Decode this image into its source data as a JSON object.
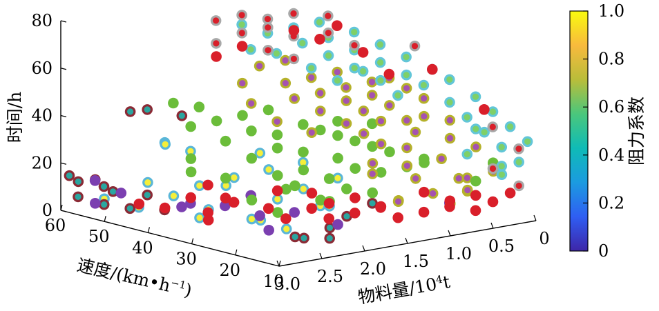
{
  "chart_data": {
    "type": "scatter",
    "projection": "3d",
    "z_label": "时间/h",
    "y_label_main": "速度/(km•h",
    "y_label_sup": "−1",
    "y_label_close": ")",
    "x_label_main": "物料量/10",
    "x_label_sup": "4",
    "x_label_unit": "t",
    "colorbar_label": "阻力系数",
    "z_ticks": [
      "0",
      "20",
      "40",
      "60",
      "80"
    ],
    "y_ticks": [
      "10",
      "20",
      "30",
      "40",
      "50",
      "60"
    ],
    "x_ticks": [
      "0",
      "0.5",
      "1.0",
      "1.5",
      "2.0",
      "2.5",
      "3.0"
    ],
    "colorbar_ticks": [
      "0",
      "0.2",
      "0.4",
      "0.6",
      "0.8",
      "1.0"
    ],
    "xlim": [
      0,
      3.0
    ],
    "ylim": [
      10,
      60
    ],
    "zlim": [
      0,
      80
    ],
    "clim": [
      0,
      1.0
    ],
    "colormap": [
      "#3e26a8",
      "#2f5ef3",
      "#1b9be0",
      "#0fbbb6",
      "#4ac77c",
      "#b9bd3a",
      "#f8ba3d",
      "#f9fb0e"
    ],
    "series": [
      {
        "face": "#f5ef3a",
        "edge": "#59b6d8",
        "points": [
          [
            2.7,
            48,
            5
          ],
          [
            2.9,
            52,
            8
          ],
          [
            2.8,
            44,
            18
          ],
          [
            2.6,
            42,
            12
          ],
          [
            2.5,
            38,
            4
          ],
          [
            2.4,
            40,
            16
          ],
          [
            2.6,
            34,
            10
          ],
          [
            2.2,
            36,
            20
          ],
          [
            2.3,
            30,
            6
          ],
          [
            2.1,
            28,
            14
          ],
          [
            2.0,
            32,
            24
          ],
          [
            2.4,
            26,
            8
          ],
          [
            1.9,
            26,
            18
          ],
          [
            1.8,
            22,
            12
          ],
          [
            2.5,
            46,
            32
          ],
          [
            2.3,
            44,
            28
          ],
          [
            2.8,
            40,
            36
          ],
          [
            2.0,
            34,
            30
          ],
          [
            1.7,
            30,
            26
          ],
          [
            1.6,
            28,
            8
          ],
          [
            2.2,
            24,
            4
          ],
          [
            2.6,
            30,
            22
          ],
          [
            1.5,
            26,
            20
          ]
        ]
      },
      {
        "face": "#2aa6a0",
        "edge": "#8b2a35",
        "points": [
          [
            2.9,
            58,
            6
          ],
          [
            2.8,
            54,
            4
          ],
          [
            2.7,
            56,
            10
          ],
          [
            2.6,
            52,
            2
          ],
          [
            2.5,
            50,
            8
          ],
          [
            2.4,
            48,
            2
          ],
          [
            2.9,
            50,
            12
          ],
          [
            3.0,
            56,
            14
          ],
          [
            2.8,
            48,
            46
          ],
          [
            2.5,
            50,
            44
          ],
          [
            2.3,
            46,
            42
          ],
          [
            2.2,
            20,
            2
          ],
          [
            2.0,
            18,
            6
          ],
          [
            1.7,
            20,
            8
          ],
          [
            1.3,
            22,
            10
          ],
          [
            2.1,
            24,
            0
          ],
          [
            1.9,
            20,
            0
          ],
          [
            2.7,
            58,
            12
          ],
          [
            2.9,
            60,
            14
          ]
        ]
      },
      {
        "face": "#7b3fb0",
        "edge": "#7b3fb0",
        "points": [
          [
            2.6,
            60,
            10
          ],
          [
            2.7,
            58,
            2
          ],
          [
            2.5,
            56,
            6
          ],
          [
            2.2,
            48,
            2
          ],
          [
            2.3,
            44,
            6
          ],
          [
            2.0,
            42,
            4
          ],
          [
            1.8,
            40,
            8
          ],
          [
            1.9,
            36,
            2
          ],
          [
            1.7,
            32,
            4
          ],
          [
            2.1,
            30,
            0
          ],
          [
            1.6,
            24,
            2
          ],
          [
            0.5,
            20,
            6
          ]
        ]
      },
      {
        "face": "#6bbd3a",
        "edge": "#6bbd3a",
        "points": [
          [
            2.4,
            42,
            40
          ],
          [
            2.2,
            40,
            42
          ],
          [
            2.0,
            38,
            44
          ],
          [
            1.8,
            36,
            46
          ],
          [
            2.1,
            34,
            40
          ],
          [
            1.9,
            32,
            38
          ],
          [
            1.7,
            30,
            42
          ],
          [
            2.3,
            36,
            36
          ],
          [
            1.6,
            28,
            40
          ],
          [
            1.5,
            26,
            38
          ],
          [
            2.0,
            30,
            34
          ],
          [
            1.8,
            28,
            32
          ],
          [
            1.4,
            24,
            36
          ],
          [
            1.3,
            22,
            34
          ],
          [
            2.2,
            32,
            30
          ],
          [
            1.6,
            24,
            30
          ],
          [
            1.2,
            20,
            32
          ],
          [
            2.5,
            40,
            28
          ],
          [
            1.9,
            26,
            26
          ],
          [
            1.5,
            22,
            26
          ],
          [
            2.1,
            28,
            24
          ],
          [
            1.7,
            24,
            22
          ],
          [
            1.3,
            20,
            24
          ],
          [
            1.1,
            18,
            26
          ],
          [
            2.4,
            34,
            22
          ],
          [
            2.0,
            26,
            20
          ],
          [
            1.6,
            22,
            18
          ],
          [
            0.4,
            12,
            26
          ],
          [
            1.4,
            20,
            16
          ],
          [
            1.8,
            22,
            14
          ],
          [
            2.3,
            30,
            14
          ],
          [
            1.5,
            26,
            44
          ],
          [
            1.2,
            24,
            42
          ],
          [
            2.6,
            38,
            24
          ],
          [
            1.9,
            30,
            16
          ],
          [
            1.0,
            16,
            28
          ],
          [
            2.2,
            26,
            10
          ],
          [
            1.7,
            26,
            12
          ]
        ]
      },
      {
        "face": "#a552b0",
        "edge": "#b5b12a",
        "points": [
          [
            1.6,
            36,
            56
          ],
          [
            1.4,
            34,
            58
          ],
          [
            1.2,
            32,
            60
          ],
          [
            1.5,
            30,
            54
          ],
          [
            1.3,
            28,
            56
          ],
          [
            1.1,
            26,
            58
          ],
          [
            1.7,
            32,
            52
          ],
          [
            1.0,
            24,
            60
          ],
          [
            1.4,
            26,
            52
          ],
          [
            1.2,
            24,
            54
          ],
          [
            0.9,
            22,
            56
          ],
          [
            1.6,
            28,
            48
          ],
          [
            1.3,
            24,
            48
          ],
          [
            1.1,
            22,
            50
          ],
          [
            0.8,
            20,
            52
          ],
          [
            1.5,
            24,
            44
          ],
          [
            1.2,
            22,
            44
          ],
          [
            0.9,
            18,
            46
          ],
          [
            1.4,
            22,
            40
          ],
          [
            1.0,
            18,
            40
          ],
          [
            0.7,
            16,
            44
          ],
          [
            1.3,
            20,
            36
          ],
          [
            1.1,
            18,
            34
          ],
          [
            0.8,
            14,
            38
          ],
          [
            1.5,
            18,
            30
          ],
          [
            1.2,
            16,
            28
          ],
          [
            0.9,
            14,
            30
          ],
          [
            0.6,
            12,
            34
          ],
          [
            1.4,
            20,
            24
          ],
          [
            1.1,
            16,
            22
          ],
          [
            0.8,
            12,
            22
          ],
          [
            0.5,
            10,
            24
          ],
          [
            1.0,
            14,
            16
          ],
          [
            0.7,
            12,
            16
          ],
          [
            1.3,
            16,
            14
          ],
          [
            0.9,
            12,
            12
          ],
          [
            1.7,
            40,
            62
          ],
          [
            1.5,
            38,
            64
          ],
          [
            1.8,
            34,
            42
          ],
          [
            1.6,
            30,
            38
          ],
          [
            2.0,
            36,
            50
          ],
          [
            1.9,
            40,
            56
          ],
          [
            1.0,
            20,
            44
          ],
          [
            0.6,
            14,
            20
          ],
          [
            1.2,
            18,
            12
          ],
          [
            0.8,
            10,
            18
          ]
        ]
      },
      {
        "face": "#7fd067",
        "edge": "#62c6d8",
        "points": [
          [
            1.4,
            44,
            72
          ],
          [
            1.2,
            42,
            74
          ],
          [
            1.0,
            40,
            76
          ],
          [
            1.3,
            38,
            70
          ],
          [
            1.1,
            36,
            72
          ],
          [
            0.9,
            34,
            74
          ],
          [
            1.5,
            40,
            66
          ],
          [
            1.2,
            34,
            66
          ],
          [
            1.0,
            32,
            68
          ],
          [
            0.8,
            30,
            70
          ],
          [
            1.4,
            34,
            62
          ],
          [
            1.1,
            30,
            62
          ],
          [
            0.9,
            28,
            64
          ],
          [
            0.7,
            26,
            66
          ],
          [
            1.3,
            30,
            58
          ],
          [
            1.0,
            26,
            58
          ],
          [
            0.8,
            24,
            60
          ],
          [
            0.6,
            22,
            62
          ],
          [
            0.7,
            22,
            56
          ],
          [
            0.5,
            20,
            58
          ],
          [
            0.6,
            18,
            50
          ],
          [
            0.4,
            16,
            52
          ],
          [
            0.5,
            16,
            44
          ],
          [
            0.3,
            14,
            46
          ],
          [
            0.4,
            14,
            38
          ],
          [
            0.2,
            12,
            40
          ],
          [
            0.3,
            12,
            32
          ],
          [
            0.1,
            10,
            34
          ],
          [
            0.2,
            10,
            26
          ],
          [
            0.4,
            10,
            22
          ],
          [
            1.6,
            46,
            76
          ],
          [
            1.7,
            42,
            68
          ],
          [
            0.3,
            12,
            24
          ],
          [
            0.6,
            14,
            30
          ],
          [
            0.9,
            24,
            52
          ],
          [
            0.5,
            14,
            40
          ],
          [
            1.0,
            30,
            60
          ]
        ]
      },
      {
        "face": "#d91f2a",
        "edge": "#a8a8a8",
        "points": [
          [
            1.8,
            48,
            78
          ],
          [
            1.6,
            46,
            80
          ],
          [
            1.4,
            44,
            78
          ],
          [
            1.2,
            42,
            80
          ],
          [
            0.9,
            40,
            78
          ],
          [
            1.7,
            44,
            74
          ],
          [
            1.5,
            42,
            76
          ],
          [
            1.3,
            40,
            72
          ],
          [
            1.9,
            46,
            70
          ],
          [
            1.1,
            36,
            74
          ],
          [
            1.6,
            40,
            68
          ],
          [
            0.6,
            26,
            70
          ],
          [
            0.2,
            16,
            38
          ],
          [
            0.1,
            12,
            30
          ],
          [
            0.3,
            14,
            22
          ],
          [
            0.2,
            10,
            16
          ],
          [
            1.4,
            38,
            64
          ],
          [
            1.0,
            32,
            70
          ]
        ]
      },
      {
        "face": "#d91f2a",
        "edge": "#d91f2a",
        "points": [
          [
            2.8,
            46,
            8
          ],
          [
            2.6,
            44,
            6
          ],
          [
            2.4,
            42,
            10
          ],
          [
            2.3,
            40,
            4
          ],
          [
            2.1,
            38,
            8
          ],
          [
            2.5,
            36,
            4
          ],
          [
            1.9,
            34,
            6
          ],
          [
            1.8,
            32,
            2
          ],
          [
            1.6,
            30,
            6
          ],
          [
            1.5,
            28,
            2
          ],
          [
            1.3,
            26,
            4
          ],
          [
            1.1,
            24,
            6
          ],
          [
            1.0,
            22,
            2
          ],
          [
            0.8,
            20,
            4
          ],
          [
            0.6,
            18,
            6
          ],
          [
            0.4,
            16,
            4
          ],
          [
            0.3,
            14,
            8
          ],
          [
            2.0,
            30,
            16
          ],
          [
            1.7,
            28,
            14
          ],
          [
            1.4,
            24,
            12
          ],
          [
            0.7,
            16,
            10
          ],
          [
            0.5,
            14,
            12
          ],
          [
            2.2,
            42,
            14
          ],
          [
            1.2,
            22,
            8
          ],
          [
            0.9,
            18,
            14
          ],
          [
            2.3,
            36,
            12
          ],
          [
            1.6,
            26,
            10
          ],
          [
            0.2,
            12,
            12
          ],
          [
            1.4,
            38,
            76
          ],
          [
            1.2,
            36,
            72
          ],
          [
            1.8,
            42,
            70
          ],
          [
            1.0,
            30,
            68
          ],
          [
            0.6,
            22,
            62
          ],
          [
            0.3,
            16,
            46
          ],
          [
            1.1,
            34,
            78
          ],
          [
            2.0,
            44,
            66
          ],
          [
            0.9,
            26,
            60
          ]
        ]
      },
      {
        "face": "#6bbd3a",
        "edge": "#6bbd3a",
        "points": [
          [
            0.9,
            18,
            28
          ],
          [
            0.5,
            14,
            18
          ],
          [
            2.4,
            46,
            48
          ],
          [
            2.2,
            44,
            46
          ]
        ]
      }
    ]
  }
}
